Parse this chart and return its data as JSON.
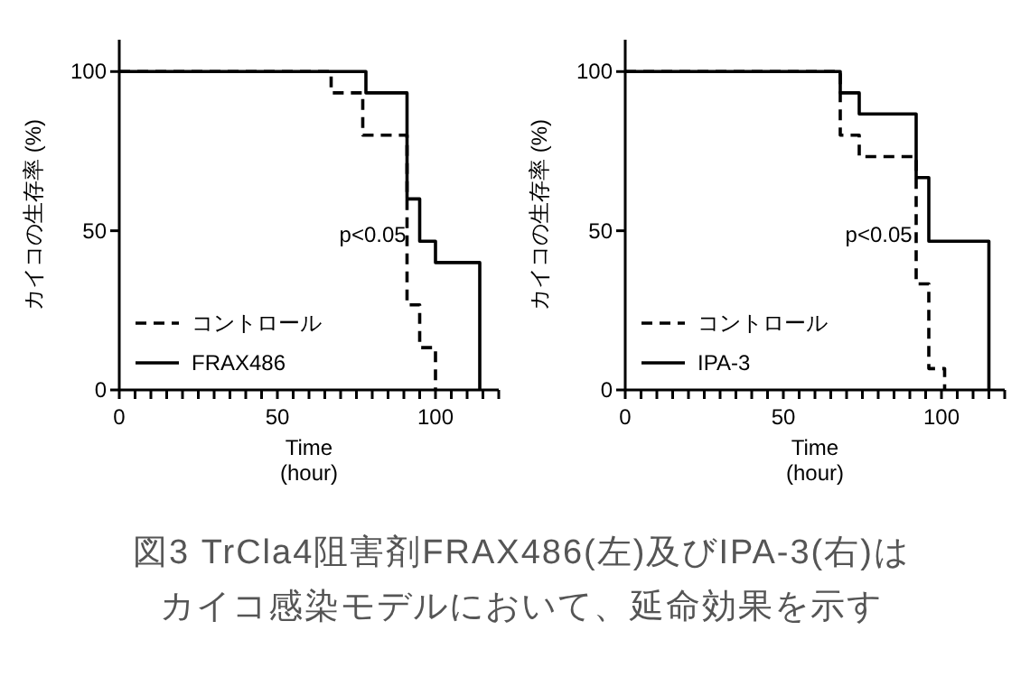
{
  "chart_data": [
    {
      "type": "step",
      "ylabel": "カイコの生存率 (%)",
      "xlabel": "Time\n(hour)",
      "xlim": [
        0,
        120
      ],
      "xticks": [
        0,
        {
          "value": 5,
          "label": null
        },
        {
          "value": 10,
          "label": null
        },
        {
          "value": 15,
          "label": null
        },
        {
          "value": 20,
          "label": null
        },
        {
          "value": 25,
          "label": null
        },
        {
          "value": 30,
          "label": null
        },
        {
          "value": 35,
          "label": null
        },
        {
          "value": 40,
          "label": null
        },
        {
          "value": 45,
          "label": null
        },
        50,
        {
          "value": 55,
          "label": null
        },
        {
          "value": 60,
          "label": null
        },
        {
          "value": 65,
          "label": null
        },
        {
          "value": 70,
          "label": null
        },
        {
          "value": 75,
          "label": null
        },
        {
          "value": 80,
          "label": null
        },
        {
          "value": 85,
          "label": null
        },
        {
          "value": 90,
          "label": null
        },
        {
          "value": 95,
          "label": null
        },
        100,
        {
          "value": 105,
          "label": null
        },
        {
          "value": 110,
          "label": null
        },
        {
          "value": 115,
          "label": null
        },
        {
          "value": 120,
          "label": null
        }
      ],
      "ylim": [
        0,
        110
      ],
      "yticks": [
        0,
        50,
        100
      ],
      "legend": "bottom left",
      "marker": "none",
      "annotations": [
        "p<0.05"
      ],
      "series": [
        {
          "name": "コントロール",
          "color": "#000000",
          "line_style": "dashed",
          "x": [
            0,
            67,
            77,
            91,
            95,
            100
          ],
          "values": [
            100,
            93.3,
            80,
            26.7,
            13.3,
            0
          ]
        },
        {
          "name": "FRAX486",
          "color": "#000000",
          "line_style": "solid",
          "x": [
            0,
            78,
            91,
            95,
            100,
            114
          ],
          "values": [
            100,
            93.3,
            60,
            46.7,
            40,
            0
          ]
        }
      ]
    },
    {
      "type": "step",
      "ylabel": "カイコの生存率 (%)",
      "xlabel": "Time\n(hour)",
      "xlim": [
        0,
        120
      ],
      "xticks": [
        0,
        {
          "value": 5,
          "label": null
        },
        {
          "value": 10,
          "label": null
        },
        {
          "value": 15,
          "label": null
        },
        {
          "value": 20,
          "label": null
        },
        {
          "value": 25,
          "label": null
        },
        {
          "value": 30,
          "label": null
        },
        {
          "value": 35,
          "label": null
        },
        {
          "value": 40,
          "label": null
        },
        {
          "value": 45,
          "label": null
        },
        50,
        {
          "value": 55,
          "label": null
        },
        {
          "value": 60,
          "label": null
        },
        {
          "value": 65,
          "label": null
        },
        {
          "value": 70,
          "label": null
        },
        {
          "value": 75,
          "label": null
        },
        {
          "value": 80,
          "label": null
        },
        {
          "value": 85,
          "label": null
        },
        {
          "value": 90,
          "label": null
        },
        {
          "value": 95,
          "label": null
        },
        100,
        {
          "value": 105,
          "label": null
        },
        {
          "value": 110,
          "label": null
        },
        {
          "value": 115,
          "label": null
        },
        {
          "value": 120,
          "label": null
        }
      ],
      "ylim": [
        0,
        110
      ],
      "yticks": [
        0,
        50,
        100
      ],
      "legend": "bottom left",
      "marker": "none",
      "annotations": [
        "p<0.05"
      ],
      "series": [
        {
          "name": "コントロール",
          "color": "#000000",
          "line_style": "dashed",
          "x": [
            0,
            68,
            74,
            92,
            96,
            101
          ],
          "values": [
            100,
            80,
            73.3,
            33.3,
            6.7,
            0
          ]
        },
        {
          "name": "IPA-3",
          "color": "#000000",
          "line_style": "solid",
          "x": [
            0,
            68,
            74,
            92,
            96,
            115
          ],
          "values": [
            100,
            93.3,
            86.7,
            66.7,
            46.7,
            0
          ]
        }
      ]
    },
    {
      "type": "other",
      "title": "図3 TrCla4阻害剤FRAX486(左)及びIPA-3(右)はカイコ感染モデルにおいて、延命効果を示す"
    }
  ]
}
